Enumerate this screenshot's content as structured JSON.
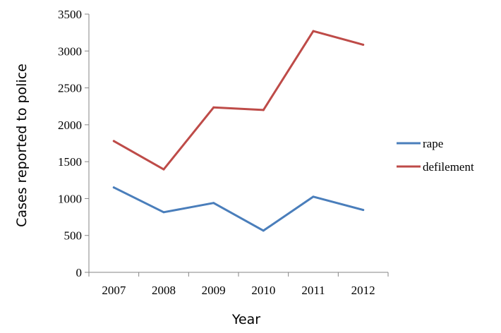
{
  "chart_data": {
    "type": "line",
    "categories": [
      "2007",
      "2008",
      "2009",
      "2010",
      "2011",
      "2012"
    ],
    "series": [
      {
        "name": "rape",
        "color": "#4a7ebb",
        "values": [
          1150,
          815,
          940,
          565,
          1025,
          845
        ]
      },
      {
        "name": "defilement",
        "color": "#be4b48",
        "values": [
          1780,
          1395,
          2235,
          2200,
          3270,
          3085
        ]
      }
    ],
    "yticks": [
      0,
      500,
      1000,
      1500,
      2000,
      2500,
      3000,
      3500
    ],
    "ylim": [
      0,
      3500
    ],
    "xlabel": "Year",
    "ylabel": "Cases reported to police",
    "grid": false,
    "legend": "right"
  }
}
